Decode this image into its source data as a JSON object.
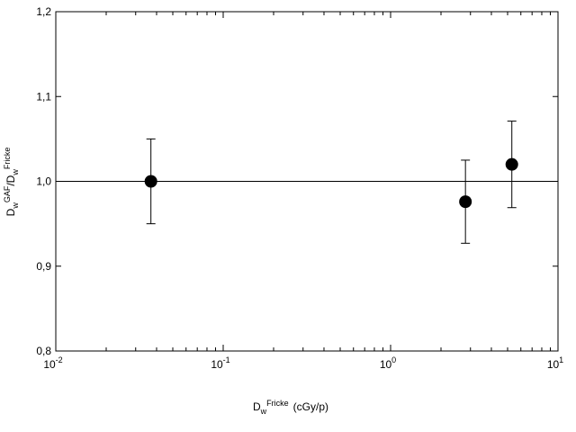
{
  "chart_data": {
    "type": "scatter",
    "title": "",
    "xlabel": {
      "base": "D",
      "sub": "w",
      "sup": "Fricke",
      "unit": "(cGy/p)"
    },
    "ylabel": {
      "part1_base": "D",
      "part1_sub": "w",
      "part1_sup": "GAF",
      "slash": "/",
      "part2_base": "D",
      "part2_sub": "w",
      "part2_sup": "Fricke"
    },
    "x_scale": "log",
    "xlim": [
      0.01,
      10
    ],
    "ylim": [
      0.8,
      1.2
    ],
    "x_ticks": [
      {
        "base": "10",
        "exp": "-2"
      },
      {
        "base": "10",
        "exp": "-1"
      },
      {
        "base": "10",
        "exp": "0"
      },
      {
        "base": "10",
        "exp": "1"
      }
    ],
    "y_ticks": [
      "0,8",
      "0,9",
      "1,0",
      "1,1",
      "1,2"
    ],
    "y_tick_values": [
      0.8,
      0.9,
      1.0,
      1.1,
      1.2
    ],
    "reference_line_y": 1.0,
    "grid": false,
    "legend": "none",
    "marker_color": "#000000",
    "points": [
      {
        "x": 0.037,
        "y": 1.0,
        "err_low": 0.95,
        "err_high": 1.05
      },
      {
        "x": 2.8,
        "y": 0.976,
        "err_low": 0.927,
        "err_high": 1.025
      },
      {
        "x": 5.3,
        "y": 1.02,
        "err_low": 0.969,
        "err_high": 1.071
      }
    ]
  }
}
